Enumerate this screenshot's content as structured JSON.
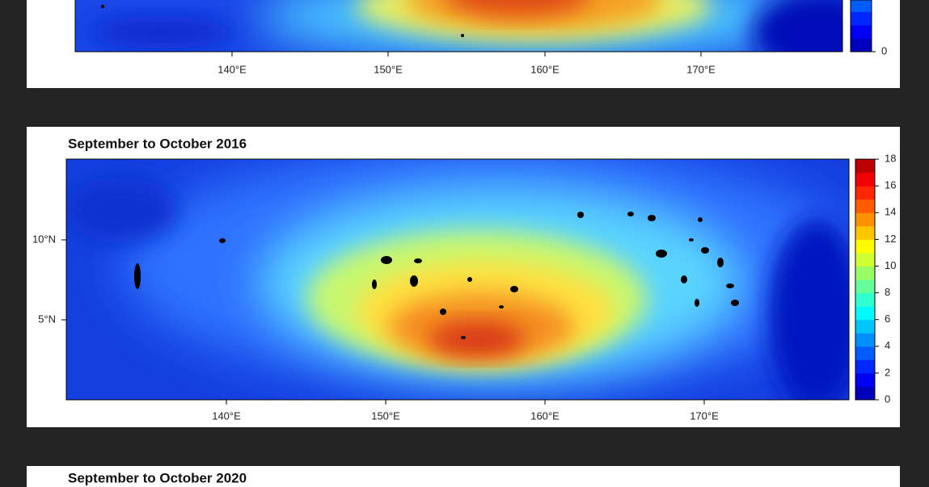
{
  "panels": [
    {
      "x_ticks": [
        "140°E",
        "150°E",
        "160°E",
        "170°E"
      ],
      "colorbar_ticks": [
        0
      ]
    },
    {
      "title": "September to October 2016",
      "y_ticks": [
        "10°N",
        "5°N"
      ],
      "x_ticks": [
        "140°E",
        "150°E",
        "160°E",
        "170°E"
      ],
      "colorbar_ticks": [
        0,
        2,
        4,
        6,
        8,
        10,
        12,
        14,
        16,
        18
      ]
    },
    {
      "title": "September to October 2020"
    }
  ]
}
